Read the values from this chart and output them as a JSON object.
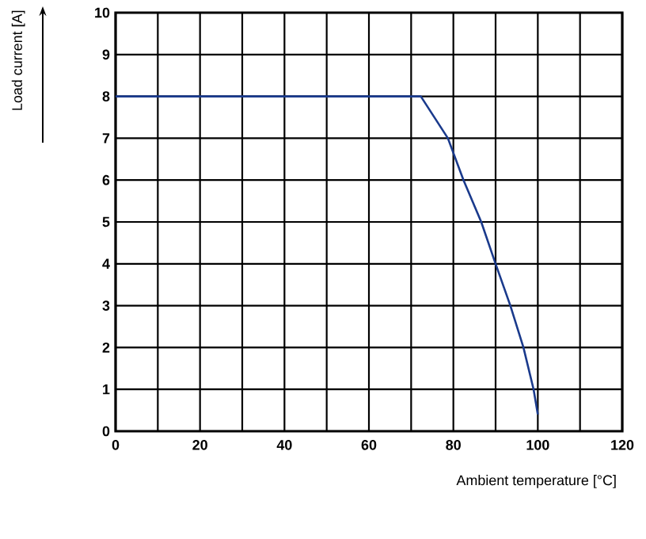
{
  "chart_data": {
    "type": "line",
    "xlabel": "Ambient temperature [°C]",
    "ylabel": "Load current [A]",
    "x": [
      0,
      72.3,
      78.7,
      82.4,
      86.6,
      90,
      93.5,
      96.6,
      99,
      100
    ],
    "series": [
      {
        "color": "#1a3a8c",
        "values": [
          8,
          8,
          7,
          6,
          5,
          4,
          3,
          2,
          1,
          0.4
        ]
      }
    ],
    "xlim": [
      0,
      120
    ],
    "ylim": [
      0,
      10
    ],
    "xticks": [
      0,
      {
        "value": 10,
        "label": null
      },
      20,
      {
        "value": 30,
        "label": null
      },
      40,
      {
        "value": 50,
        "label": null
      },
      60,
      {
        "value": 70,
        "label": null
      },
      80,
      {
        "value": 90,
        "label": null
      },
      100,
      {
        "value": 110,
        "label": null
      },
      120
    ],
    "yticks": [
      0,
      1,
      2,
      3,
      4,
      5,
      6,
      7,
      8,
      9,
      10
    ],
    "grid": true
  }
}
